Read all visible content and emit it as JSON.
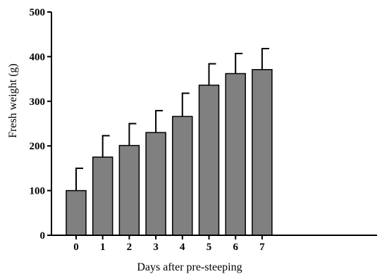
{
  "chart_data": {
    "type": "bar",
    "xlabel": "Days after pre-steeping",
    "ylabel": "Fresh weight (g)",
    "categories": [
      "0",
      "1",
      "2",
      "3",
      "4",
      "5",
      "6",
      "7"
    ],
    "values": [
      100,
      175,
      201,
      230,
      266,
      336,
      362,
      371
    ],
    "error_upper": [
      150,
      223,
      250,
      279,
      318,
      384,
      407,
      418
    ],
    "ylim": [
      0,
      500
    ],
    "yticks": [
      "0",
      "100",
      "200",
      "300",
      "400",
      "500"
    ],
    "grid": false,
    "legend": "none",
    "colors": {
      "bar_fill": "#808080",
      "bar_stroke": "#000000",
      "axis": "#000000"
    }
  }
}
